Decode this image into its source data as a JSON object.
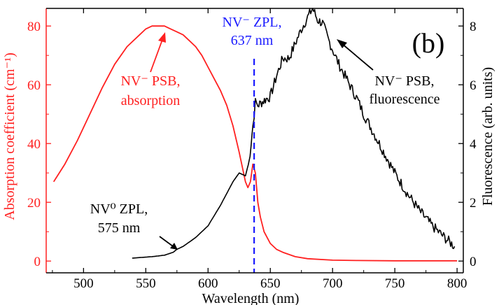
{
  "colors": {
    "absorption": "#ff2020",
    "fluorescence": "#000000",
    "zpl_line": "#1a1aff",
    "axis": "#000000"
  },
  "chart_data": {
    "type": "line",
    "panel_label": "(b)",
    "xlabel": "Wavelength (nm)",
    "ylabel_left": "Absorption coefficient (cm⁻¹)",
    "ylabel_right": "Fluorescence (arb. units)",
    "xlim": [
      470,
      805
    ],
    "ylim_left": [
      -4,
      86
    ],
    "ylim_right": [
      -0.4,
      8.6
    ],
    "x_ticks": [
      500,
      550,
      600,
      650,
      700,
      750,
      800
    ],
    "y_left_ticks": [
      0,
      20,
      40,
      60,
      80
    ],
    "y_right_ticks": [
      0,
      2,
      4,
      6,
      8
    ],
    "grid": false,
    "series": [
      {
        "axis": "left",
        "x": [
          476,
          485,
          495,
          505,
          515,
          525,
          535,
          545,
          550,
          555,
          560,
          565,
          570,
          575,
          580,
          585,
          590,
          595,
          600,
          605,
          610,
          615,
          620,
          625,
          630,
          632,
          634,
          636,
          638,
          640,
          642,
          645,
          650,
          655,
          660,
          670,
          680,
          700,
          720,
          750,
          780,
          800
        ],
        "y": [
          27,
          33,
          41,
          50,
          59,
          67,
          73,
          77,
          79,
          80,
          80,
          80,
          79,
          78,
          77,
          75,
          73,
          70,
          66,
          62,
          58,
          53,
          46,
          37,
          27,
          25,
          27,
          33,
          30,
          20,
          15,
          10,
          6,
          4,
          3,
          1.5,
          0.8,
          0.3,
          0.2,
          0.1,
          0.1,
          0.1
        ]
      },
      {
        "axis": "right",
        "x": [
          539,
          555,
          565,
          572,
          575,
          580,
          590,
          600,
          610,
          620,
          625,
          630,
          633,
          636,
          638,
          640,
          643,
          646,
          650,
          655,
          660,
          665,
          670,
          675,
          680,
          684,
          688,
          692,
          696,
          700,
          705,
          710,
          715,
          720,
          725,
          730,
          735,
          740,
          745,
          750,
          760,
          770,
          780,
          790,
          798
        ],
        "y": [
          0.1,
          0.15,
          0.2,
          0.3,
          0.4,
          0.5,
          0.8,
          1.2,
          1.9,
          2.7,
          3.0,
          2.9,
          3.4,
          4.6,
          5.4,
          5.3,
          5.4,
          5.5,
          5.6,
          6.3,
          6.9,
          6.9,
          7.4,
          7.9,
          8.3,
          8.6,
          8.2,
          8.1,
          7.6,
          7.2,
          6.7,
          6.3,
          5.9,
          5.5,
          5.0,
          4.6,
          4.2,
          3.8,
          3.4,
          3.0,
          2.3,
          1.7,
          1.2,
          0.8,
          0.5
        ]
      }
    ],
    "annotations": [
      {
        "id": "nv-minus-zpl",
        "lines": [
          "NV⁻ ZPL,",
          "637 nm"
        ],
        "x": 637
      },
      {
        "id": "nv-minus-psb-absorption",
        "lines": [
          "NV⁻ PSB,",
          "absorption"
        ]
      },
      {
        "id": "nv-minus-psb-fluorescence",
        "lines": [
          "NV⁻ PSB,",
          "fluorescence"
        ]
      },
      {
        "id": "nv0-zpl",
        "lines": [
          "NV⁰ ZPL,",
          "575 nm"
        ]
      }
    ]
  }
}
